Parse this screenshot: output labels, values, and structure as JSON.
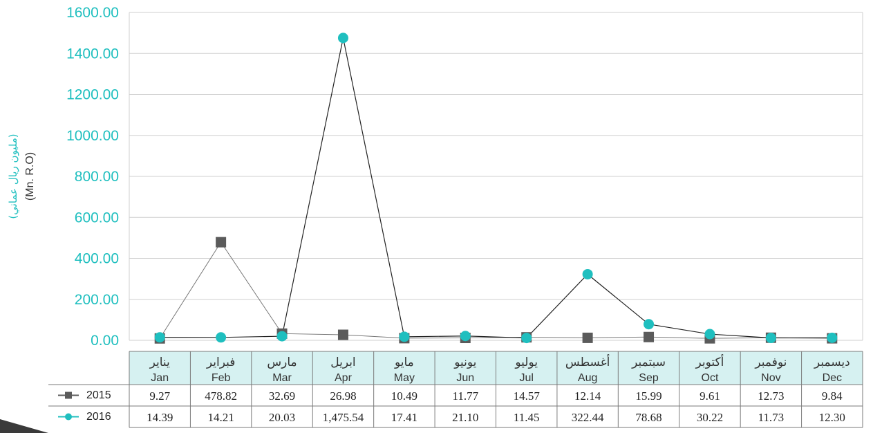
{
  "chart_data": {
    "type": "line",
    "ylabel_ar": "(مليون ريال عماني)",
    "ylabel_en": "(Mn. R.O)",
    "ylim": [
      0,
      1600
    ],
    "yticks": [
      "0.00",
      "200.00",
      "400.00",
      "600.00",
      "800.00",
      "1000.00",
      "1200.00",
      "1400.00",
      "1600.00"
    ],
    "ytick_values": [
      0,
      200,
      400,
      600,
      800,
      1000,
      1200,
      1400,
      1600
    ],
    "grid": true,
    "months_ar": [
      "يناير",
      "فبراير",
      "مارس",
      "ابريل",
      "مايو",
      "يونيو",
      "يوليو",
      "أغسطس",
      "سبتمبر",
      "أكتوبر",
      "نوفمبر",
      "ديسمبر"
    ],
    "months_en": [
      "Jan",
      "Feb",
      "Mar",
      "Apr",
      "May",
      "Jun",
      "Jul",
      "Aug",
      "Sep",
      "Oct",
      "Nov",
      "Dec"
    ],
    "series": [
      {
        "name": "2015",
        "color": "#5b5b5b",
        "marker": "square",
        "values": [
          9.27,
          478.82,
          32.69,
          26.98,
          10.49,
          11.77,
          14.57,
          12.14,
          15.99,
          9.61,
          12.73,
          9.84
        ],
        "labels": [
          "9.27",
          "478.82",
          "32.69",
          "26.98",
          "10.49",
          "11.77",
          "14.57",
          "12.14",
          "15.99",
          "9.61",
          "12.73",
          "9.84"
        ]
      },
      {
        "name": "2016",
        "color": "#1fbfbf",
        "marker": "circle",
        "values": [
          14.39,
          14.21,
          20.03,
          1475.54,
          17.41,
          21.1,
          11.45,
          322.44,
          78.68,
          30.22,
          11.73,
          12.3
        ],
        "labels": [
          "14.39",
          "14.21",
          "20.03",
          "1,475.54",
          "17.41",
          "21.10",
          "11.45",
          "322.44",
          "78.68",
          "30.22",
          "11.73",
          "12.30"
        ]
      }
    ],
    "colors": {
      "grid": "#cfcfcf",
      "axis_text": "#1fbfbf",
      "header_fill": "#d6f1f1",
      "table_border": "#7a7a7a"
    }
  }
}
